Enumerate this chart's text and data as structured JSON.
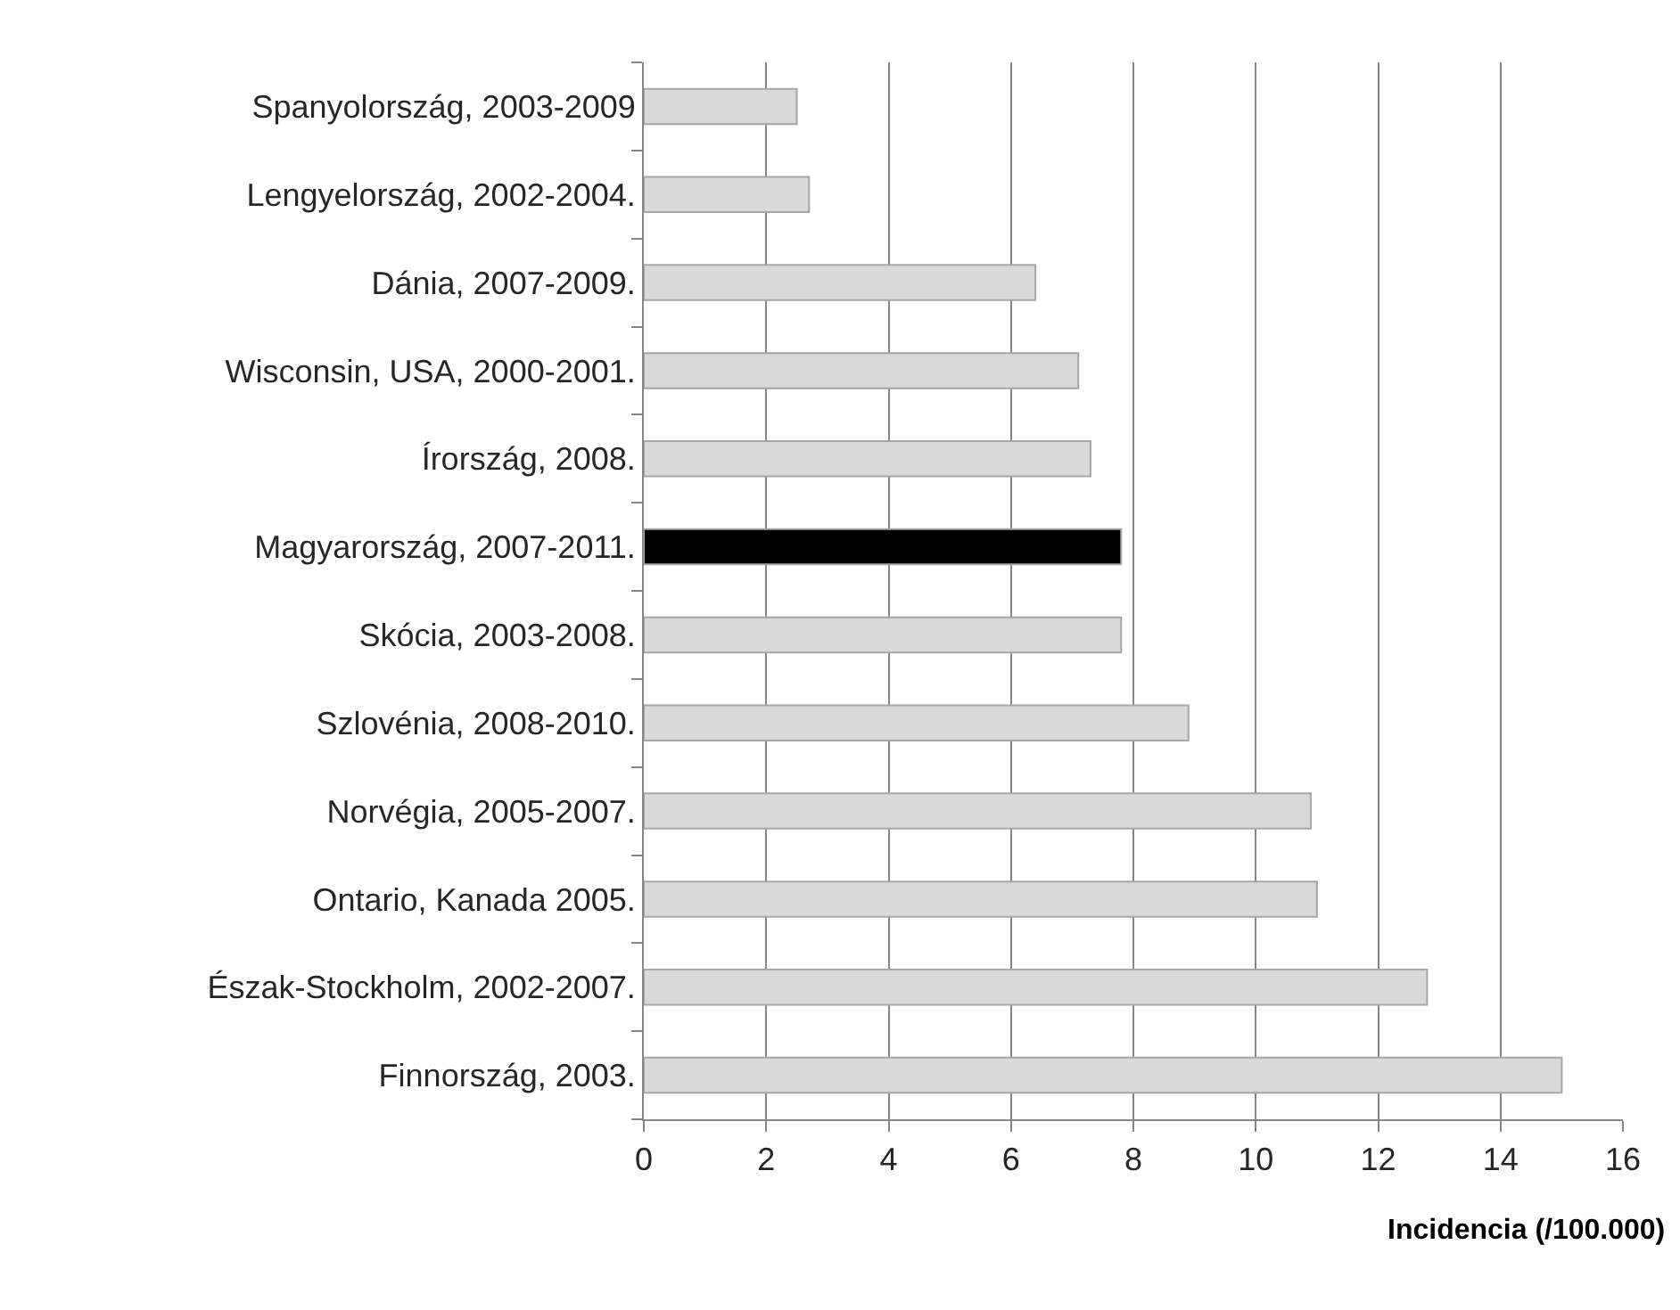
{
  "chart_data": {
    "type": "bar",
    "orientation": "horizontal",
    "categories": [
      "Spanyolország, 2003-2009",
      "Lengyelország, 2002-2004.",
      "Dánia, 2007-2009.",
      "Wisconsin, USA, 2000-2001.",
      "Írország, 2008.",
      "Magyarország, 2007-2011.",
      "Skócia, 2003-2008.",
      "Szlovénia, 2008-2010.",
      "Norvégia, 2005-2007.",
      "Ontario, Kanada 2005.",
      "Észak-Stockholm, 2002-2007.",
      "Finnország, 2003."
    ],
    "values": [
      2.5,
      2.7,
      6.4,
      7.1,
      7.3,
      7.8,
      7.8,
      8.9,
      10.9,
      11.0,
      12.8,
      15.0
    ],
    "colors": [
      "#d9d9d9",
      "#d9d9d9",
      "#d9d9d9",
      "#d9d9d9",
      "#d9d9d9",
      "#000000",
      "#d9d9d9",
      "#d9d9d9",
      "#d9d9d9",
      "#d9d9d9",
      "#d9d9d9",
      "#d9d9d9"
    ],
    "xlabel": "Incidencia (/100.000)",
    "xlim": [
      0,
      16
    ],
    "xticks": [
      0,
      2,
      4,
      6,
      8,
      10,
      12,
      14,
      16
    ],
    "grid": "x"
  }
}
